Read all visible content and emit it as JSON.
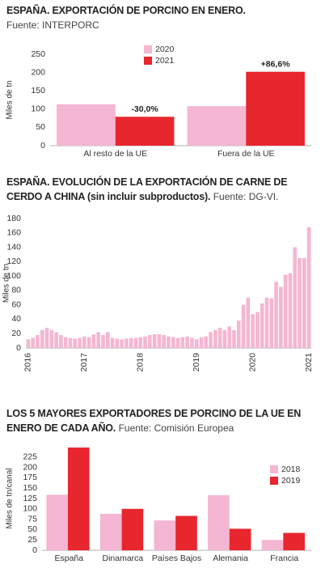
{
  "chart_data": [
    {
      "type": "bar",
      "title": "ESPAÑA. EXPORTACIÓN DE PORCINO EN ENERO.",
      "subtitle": "Fuente: INTERPORC",
      "y_label": "Miles de tn",
      "categories": [
        "Al resto de la UE",
        "Fuera de la UE"
      ],
      "series": [
        {
          "name": "2020",
          "color": "#f4b6d2",
          "values": [
            113,
            108
          ]
        },
        {
          "name": "2021",
          "color": "#e8262d",
          "values": [
            79,
            202
          ],
          "annotations": [
            "-30,0%",
            "+86,6%"
          ]
        }
      ],
      "ylim": [
        0,
        250
      ],
      "yticks": [
        0,
        50,
        100,
        150,
        200,
        250
      ],
      "grid": false,
      "legend": "top"
    },
    {
      "type": "bar",
      "title": "ESPAÑA. EVOLUCIÓN DE LA EXPORTACIÓN DE CARNE DE CERDO A CHINA (sin incluir subproductos).",
      "subtitle": "Fuente: DG-VI.",
      "y_label": "Miles de tn",
      "categories": [
        "2016",
        null,
        null,
        null,
        null,
        null,
        null,
        null,
        null,
        null,
        null,
        null,
        "2017",
        null,
        null,
        null,
        null,
        null,
        null,
        null,
        null,
        null,
        null,
        null,
        "2018",
        null,
        null,
        null,
        null,
        null,
        null,
        null,
        null,
        null,
        null,
        null,
        "2019",
        null,
        null,
        null,
        null,
        null,
        null,
        null,
        null,
        null,
        null,
        null,
        "2020",
        null,
        null,
        null,
        null,
        null,
        null,
        null,
        null,
        null,
        null,
        null,
        "2021"
      ],
      "values": [
        12,
        14,
        18,
        25,
        28,
        25,
        22,
        18,
        15,
        14,
        13,
        14,
        16,
        15,
        19,
        22,
        18,
        22,
        14,
        13,
        12,
        13,
        14,
        14,
        15,
        16,
        18,
        19,
        19,
        18,
        16,
        15,
        14,
        15,
        16,
        14,
        12,
        15,
        16,
        22,
        25,
        28,
        25,
        30,
        25,
        38,
        60,
        70,
        47,
        50,
        62,
        70,
        69,
        92,
        85,
        102,
        104,
        140,
        125,
        125,
        168
      ],
      "color": "#f4b6d2",
      "ylim": [
        0,
        180
      ],
      "yticks": [
        0,
        20,
        40,
        60,
        80,
        100,
        120,
        140,
        160,
        180
      ],
      "grid": false
    },
    {
      "type": "bar",
      "title": "LOS 5 MAYORES EXPORTADORES DE PORCINO DE LA UE EN ENERO DE CADA AÑO.",
      "subtitle": "Fuente: Comisión Europea",
      "y_label": "Miles de tn/canal",
      "categories": [
        "España",
        "Dinamarca",
        "Países Bajos",
        "Alemania",
        "Francia"
      ],
      "series": [
        {
          "name": "2018",
          "color": "#f4b6d2",
          "values": [
            134,
            88,
            72,
            133,
            25
          ]
        },
        {
          "name": "2019",
          "color": "#e8262d",
          "values": [
            248,
            100,
            83,
            52,
            42
          ]
        }
      ],
      "ylim": [
        0,
        250
      ],
      "yticks": [
        0,
        25,
        50,
        75,
        100,
        125,
        150,
        175,
        200,
        225
      ],
      "grid": false,
      "legend": "top right"
    }
  ]
}
